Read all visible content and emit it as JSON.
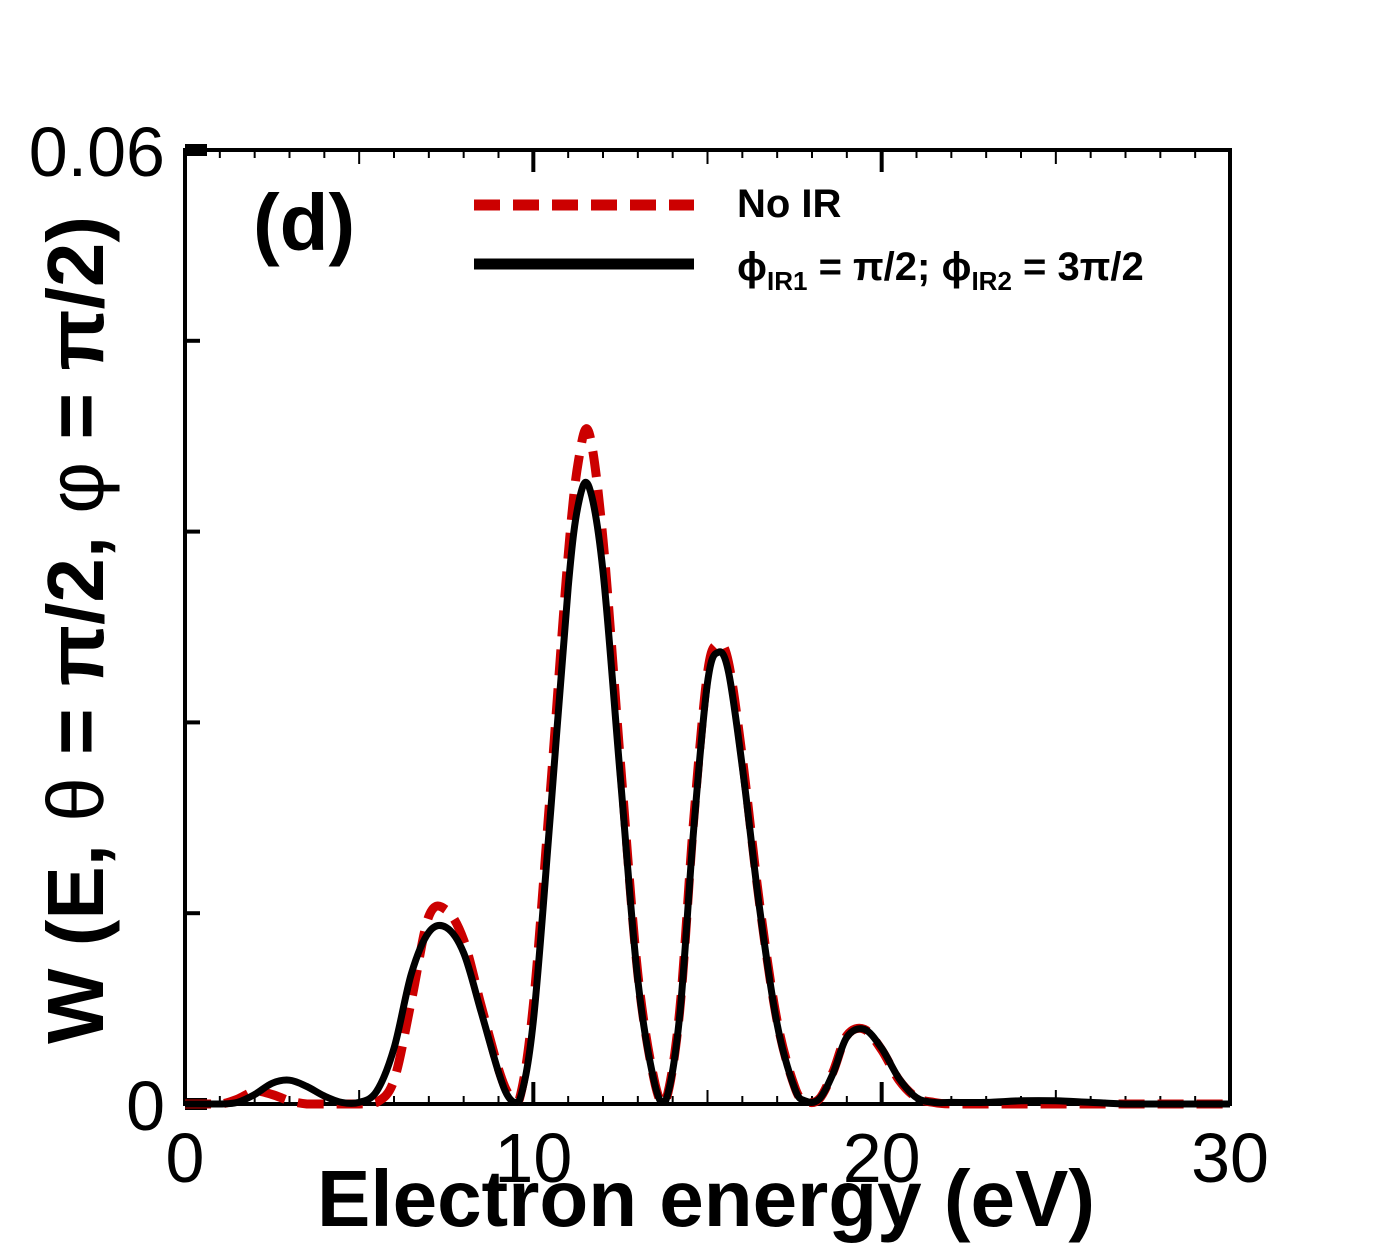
{
  "chart_data": {
    "type": "line",
    "panel_label": "(d)",
    "xlabel": "Electron energy (eV)",
    "ylabel": {
      "prefix": "W (E, ",
      "theta": "θ",
      "mid": " = π/2, ",
      "phi": "φ",
      "suffix": " = π/2)"
    },
    "xlim": [
      0,
      30
    ],
    "ylim": [
      0,
      0.06
    ],
    "x_tick_labels": [
      "0",
      "10",
      "20",
      "30"
    ],
    "x_tick_values": [
      0,
      10,
      20,
      30
    ],
    "y_tick_labels": [
      "0",
      "0.06"
    ],
    "y_tick_values": [
      0,
      0.06
    ],
    "y_minor_ticks": [
      0.012,
      0.024,
      0.036,
      0.048
    ],
    "grid": false,
    "legend_position": "top-right",
    "series": [
      {
        "name": "No IR",
        "legend": {
          "text": "No IR"
        },
        "color": "#cc0000",
        "style": "dashed",
        "x": [
          0,
          1,
          1.5,
          2,
          2.5,
          3,
          3.5,
          4,
          4.5,
          5,
          5.5,
          6,
          6.5,
          7,
          7.5,
          8,
          8.5,
          9,
          9.3,
          9.6,
          10,
          10.5,
          11,
          11.3,
          11.6,
          12,
          12.5,
          13,
          13.5,
          13.8,
          14.2,
          14.6,
          15,
          15.3,
          15.6,
          16,
          16.5,
          17,
          17.5,
          17.8,
          18.2,
          18.6,
          19,
          19.5,
          20,
          20.5,
          21,
          21.5,
          22,
          23,
          24,
          25,
          26,
          27,
          28,
          29,
          30
        ],
        "y": [
          0,
          0,
          0.0003,
          0.0008,
          0.0006,
          0.0002,
          0,
          0,
          0,
          0,
          0.0001,
          0.0015,
          0.0065,
          0.0118,
          0.0122,
          0.0103,
          0.0062,
          0.0022,
          0.0006,
          0.0003,
          0.0062,
          0.02,
          0.0345,
          0.0405,
          0.0422,
          0.0355,
          0.0215,
          0.0082,
          0.0012,
          0.0002,
          0.0058,
          0.0178,
          0.0271,
          0.0289,
          0.0278,
          0.0218,
          0.0125,
          0.0052,
          0.0011,
          0.0002,
          0.0003,
          0.002,
          0.0043,
          0.0047,
          0.0034,
          0.0015,
          0.0004,
          0.0001,
          0,
          0,
          0,
          0,
          0,
          0,
          0,
          0,
          0
        ]
      },
      {
        "name": "phi_IR1 = π/2; phi_IR2 = 3π/2",
        "legend": {
          "phi1": "ϕ",
          "sub1": "IR1",
          "mid": " = π/2; ",
          "phi2": "ϕ",
          "sub2": "IR2",
          "end": " = 3π/2"
        },
        "color": "#000000",
        "style": "solid",
        "x": [
          0,
          1,
          1.5,
          2,
          2.5,
          3,
          3.5,
          4,
          4.5,
          5,
          5.5,
          6,
          6.5,
          7,
          7.5,
          8,
          8.5,
          9,
          9.3,
          9.6,
          10,
          10.5,
          11,
          11.3,
          11.6,
          12,
          12.5,
          13,
          13.5,
          13.8,
          14.2,
          14.6,
          15,
          15.3,
          15.6,
          16,
          16.5,
          17,
          17.5,
          17.8,
          18.2,
          18.6,
          19,
          19.5,
          20,
          20.5,
          21,
          21.5,
          22,
          23,
          24,
          25,
          26,
          27,
          28,
          29,
          30
        ],
        "y": [
          0,
          0,
          0.0001,
          0.0006,
          0.0013,
          0.0015,
          0.0011,
          0.0005,
          0.0001,
          0.0001,
          0.0008,
          0.0035,
          0.0082,
          0.0108,
          0.0111,
          0.0095,
          0.0058,
          0.002,
          0.0004,
          0.0002,
          0.0052,
          0.0185,
          0.0325,
          0.0378,
          0.0388,
          0.0335,
          0.0205,
          0.0078,
          0.0011,
          0.0002,
          0.0055,
          0.0172,
          0.0265,
          0.0284,
          0.0272,
          0.0212,
          0.0122,
          0.005,
          0.001,
          0.0002,
          0.0003,
          0.0019,
          0.0042,
          0.0047,
          0.0035,
          0.0016,
          0.0004,
          0.0001,
          0.0001,
          0.0001,
          0.0002,
          0.0002,
          0.0001,
          0,
          0,
          0,
          0
        ]
      }
    ]
  }
}
